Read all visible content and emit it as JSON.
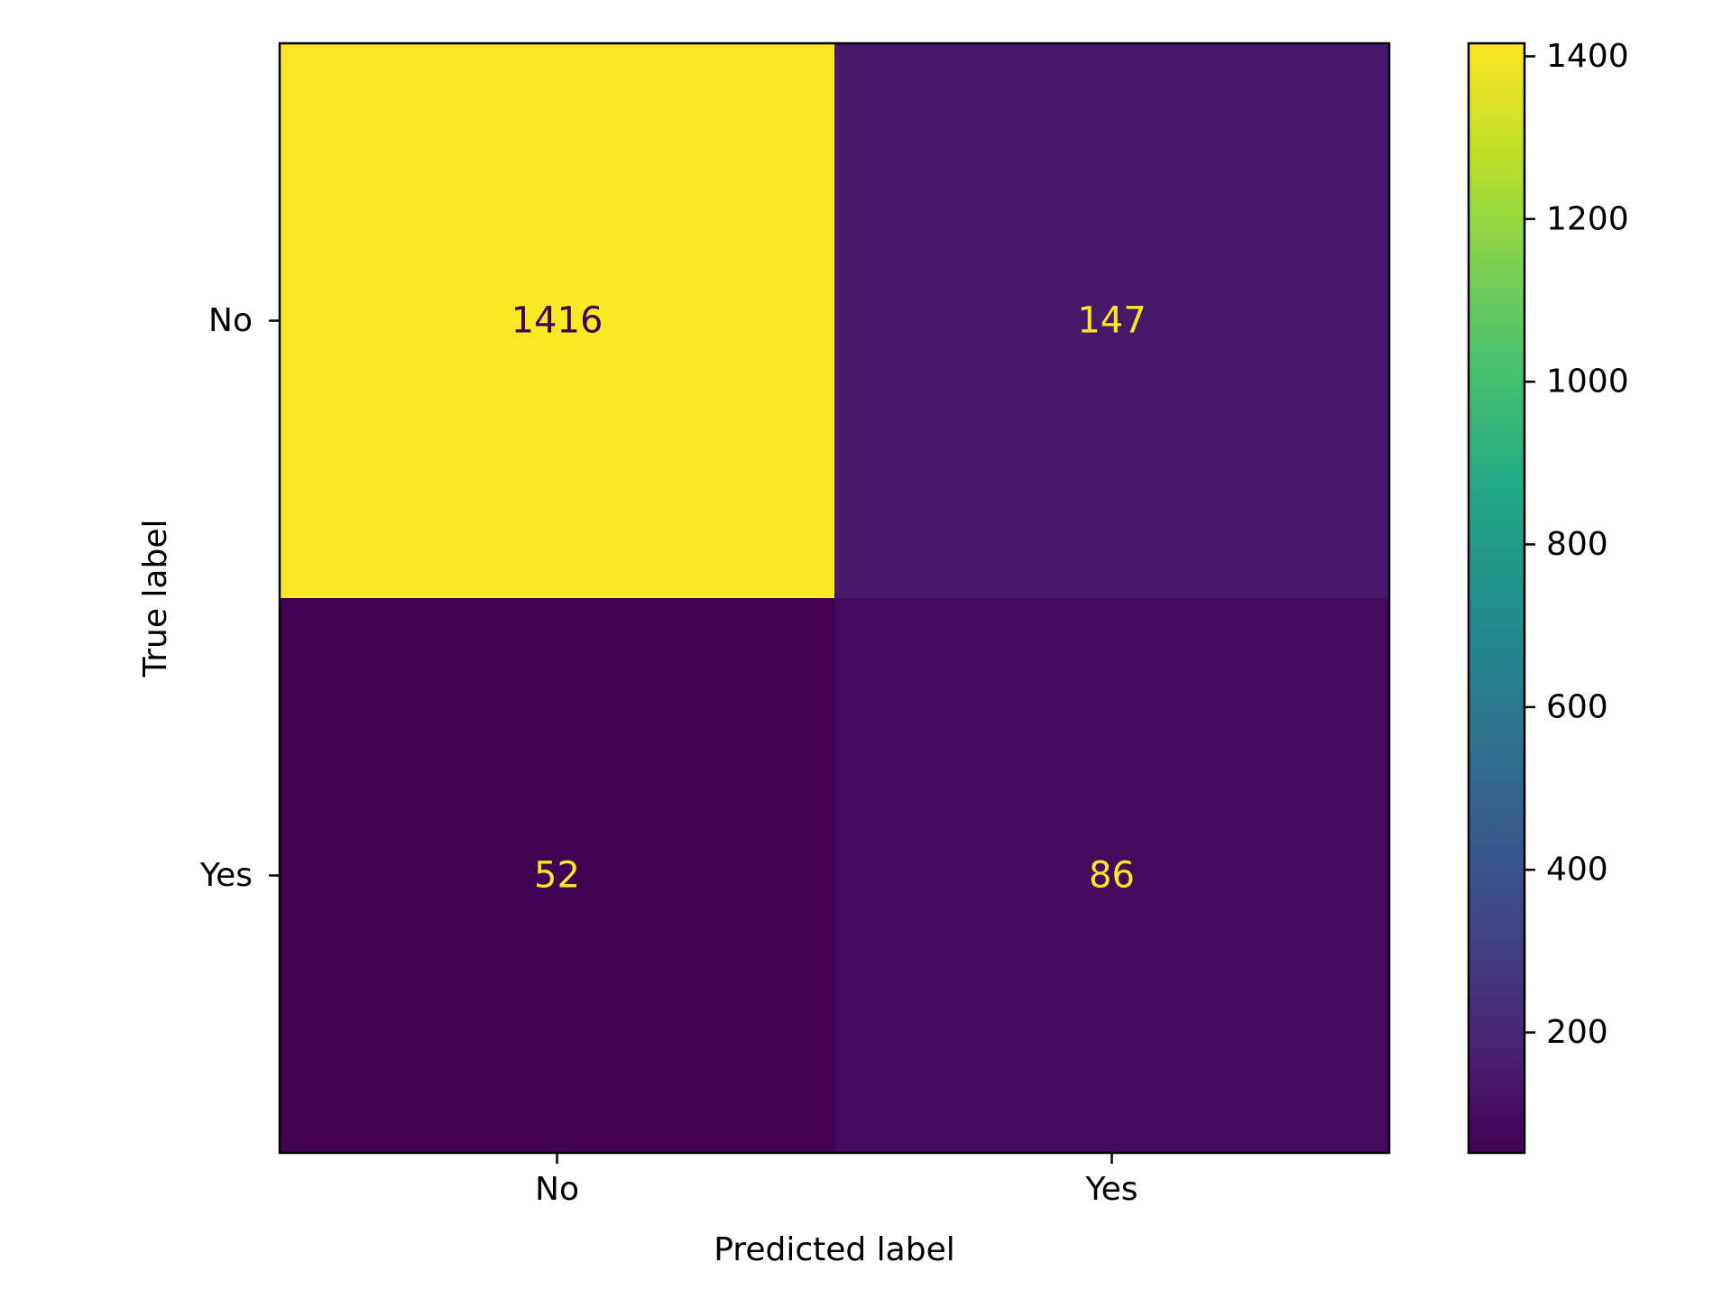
{
  "chart_data": {
    "type": "heatmap",
    "title": "",
    "xlabel": "Predicted label",
    "ylabel": "True label",
    "x_categories": [
      "No",
      "Yes"
    ],
    "y_categories": [
      "No",
      "Yes"
    ],
    "matrix": [
      [
        1416,
        147
      ],
      [
        52,
        86
      ]
    ],
    "colormap": "viridis",
    "colorbar": {
      "vmin": 52,
      "vmax": 1416,
      "ticks": [
        200,
        400,
        600,
        800,
        1000,
        1200,
        1400
      ]
    },
    "text_colors": {
      "on_dark": "#fde725",
      "on_light": "#440154"
    }
  }
}
